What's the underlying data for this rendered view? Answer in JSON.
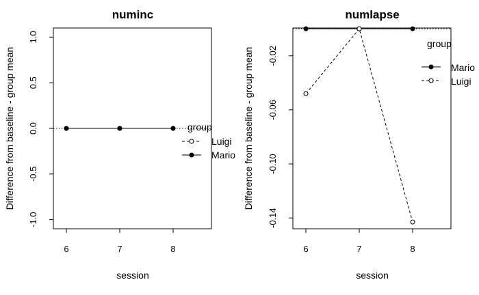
{
  "chart_data": [
    {
      "type": "line",
      "title": "numinc",
      "xlabel": "session",
      "ylabel": "Difference from baseline - group mean",
      "x": [
        6,
        7,
        8
      ],
      "xticks": [
        "6",
        "7",
        "8"
      ],
      "ylim": [
        -1.1,
        1.1
      ],
      "yticks": [
        "-1.0",
        "-0.5",
        "0.0",
        "0.5",
        "1.0"
      ],
      "ytick_values": [
        -1.0,
        -0.5,
        0.0,
        0.5,
        1.0
      ],
      "reference_line": 0,
      "series": [
        {
          "name": "Luigi",
          "values": [
            0,
            0,
            0
          ],
          "line": "dashed",
          "marker": "open-circle"
        },
        {
          "name": "Mario",
          "values": [
            0,
            0,
            0
          ],
          "line": "solid",
          "marker": "filled-circle"
        }
      ],
      "legend": {
        "title": "group",
        "position": "right",
        "order": [
          "Luigi",
          "Mario"
        ]
      }
    },
    {
      "type": "line",
      "title": "numlapse",
      "xlabel": "session",
      "ylabel": "Difference from baseline - group mean",
      "x": [
        6,
        7,
        8
      ],
      "xticks": [
        "6",
        "7",
        "8"
      ],
      "ylim": [
        -0.148,
        0.0006
      ],
      "yticks": [
        "-0.02",
        "-0.06",
        "-0.10",
        "-0.14"
      ],
      "ytick_values": [
        -0.02,
        -0.06,
        -0.1,
        -0.14
      ],
      "reference_line": 0,
      "series": [
        {
          "name": "Mario",
          "values": [
            0,
            0,
            0
          ],
          "line": "solid",
          "marker": "filled-circle"
        },
        {
          "name": "Luigi",
          "values": [
            -0.048,
            0,
            -0.143
          ],
          "line": "dashed",
          "marker": "open-circle"
        }
      ],
      "legend": {
        "title": "group",
        "position": "top-right",
        "order": [
          "Mario",
          "Luigi"
        ]
      }
    }
  ]
}
